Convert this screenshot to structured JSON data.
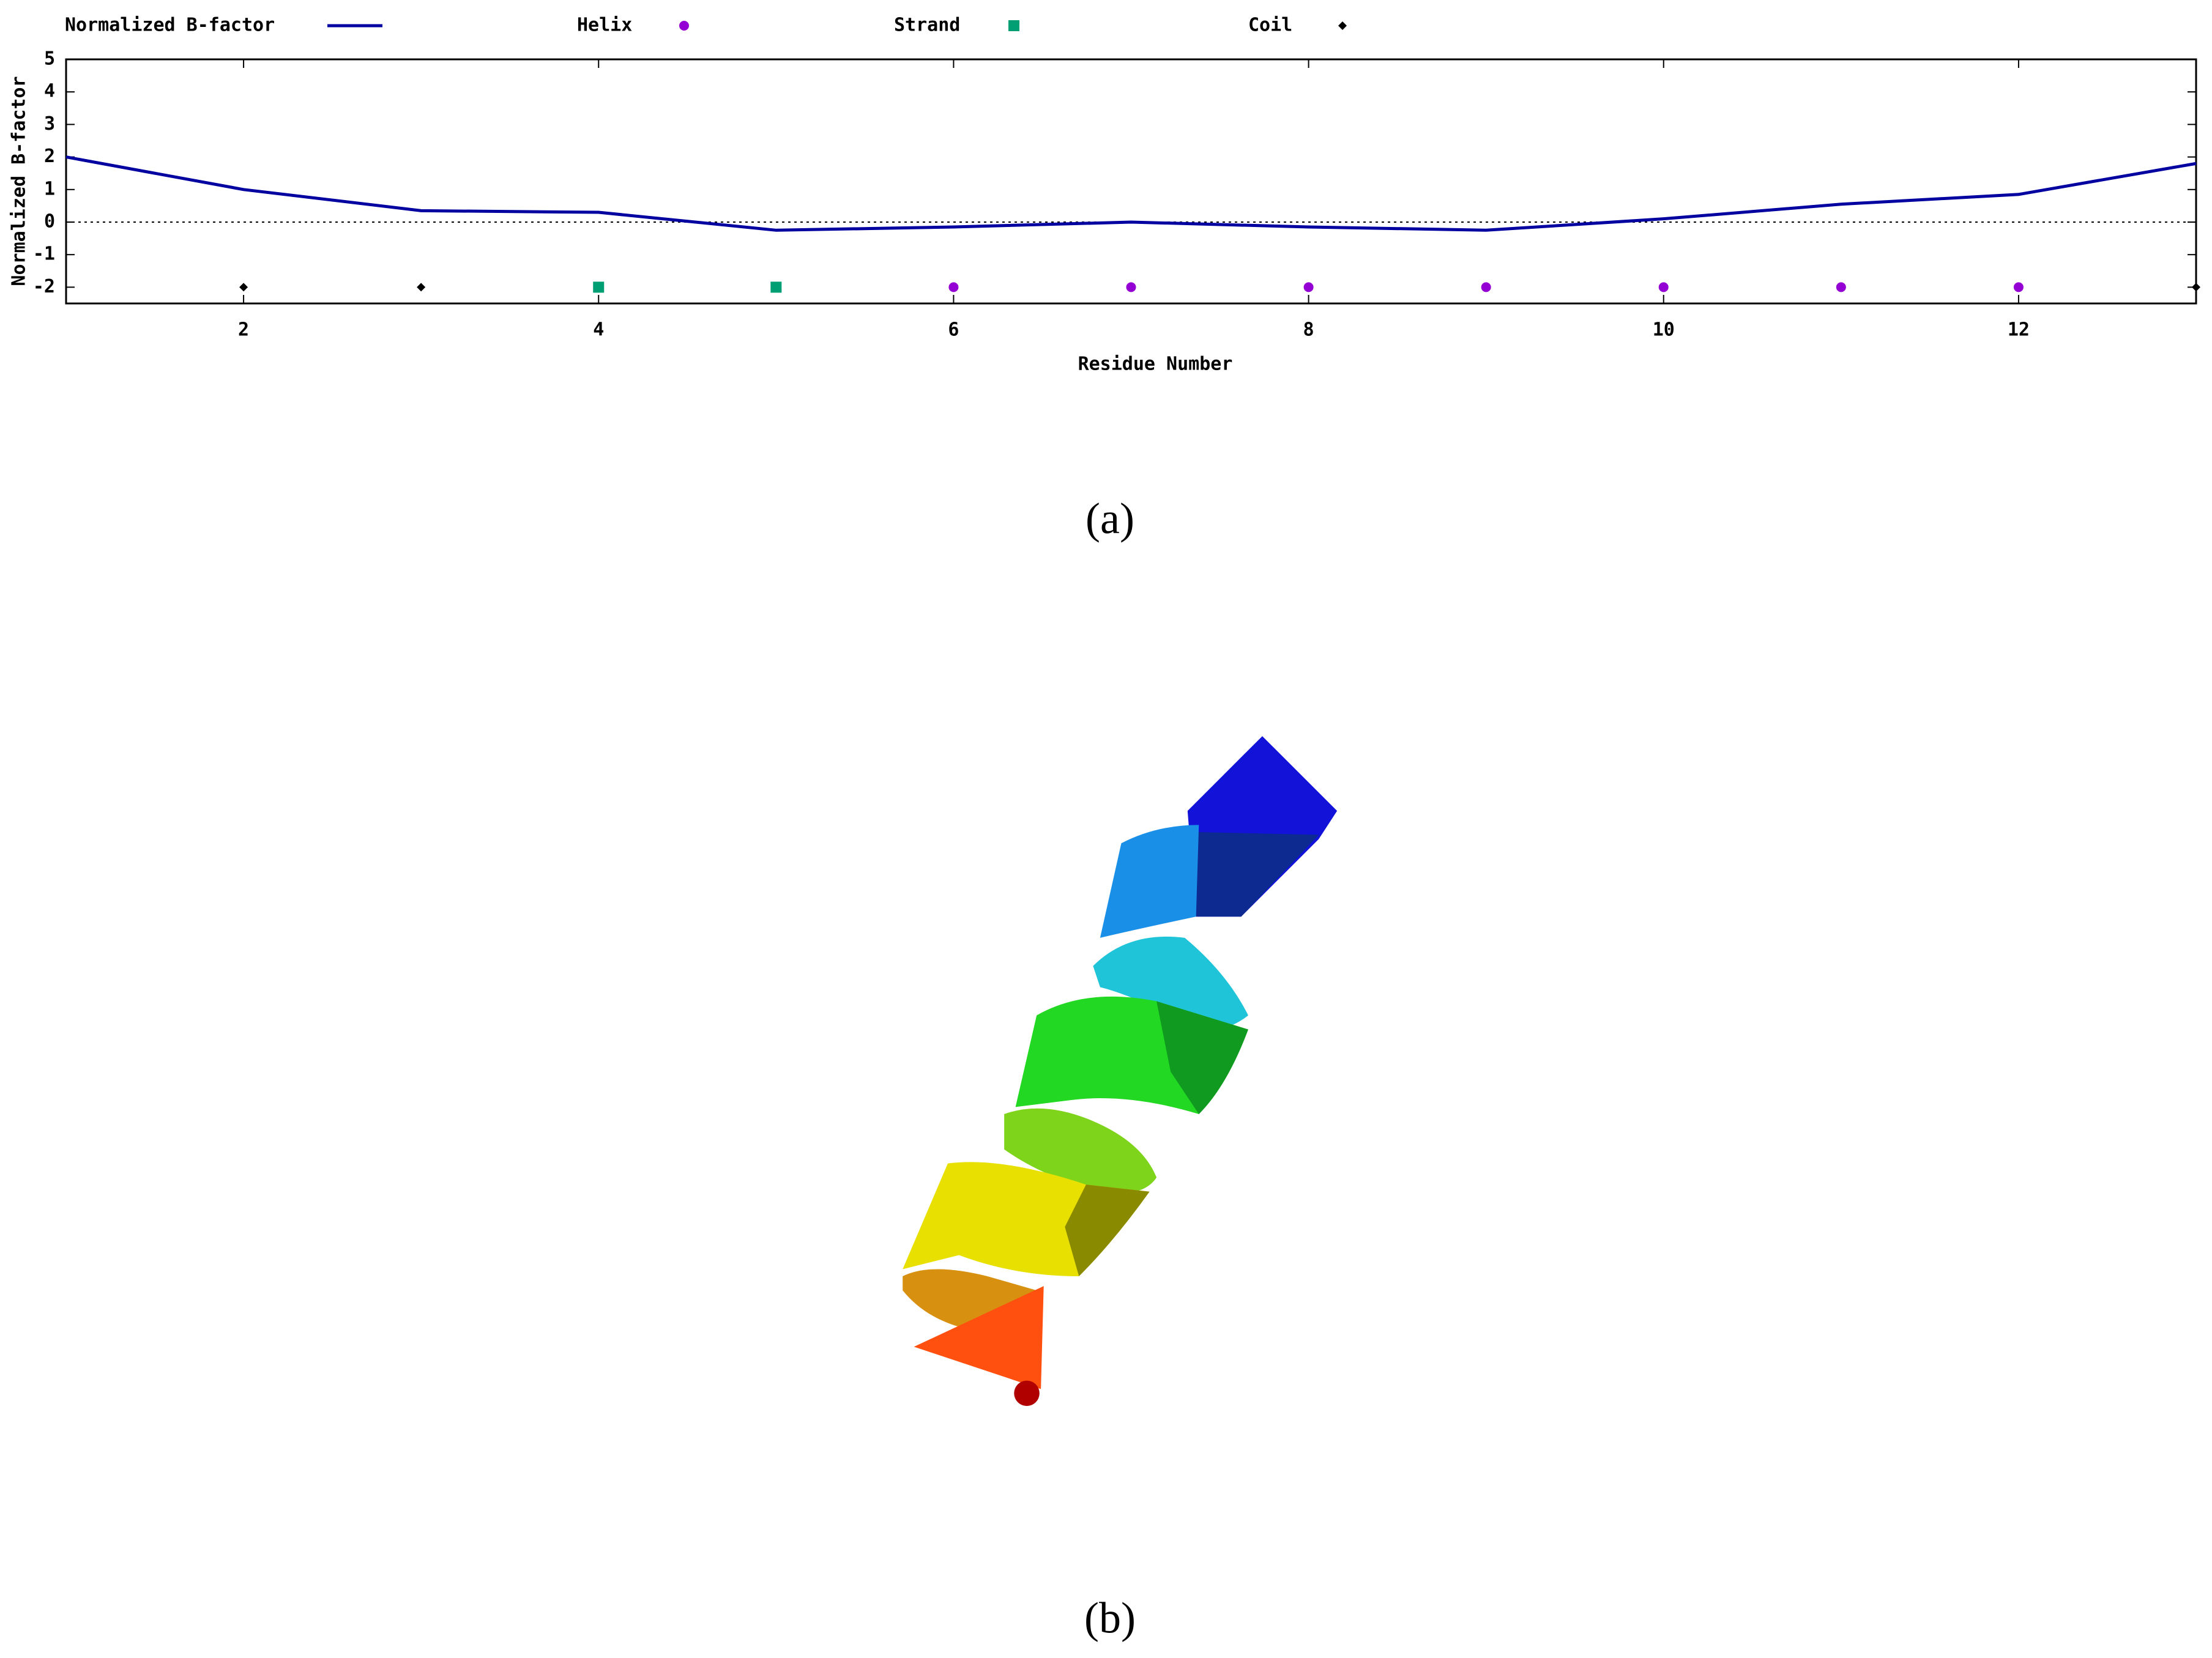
{
  "chart_data": {
    "type": "line",
    "y_label": "Normalized B-factor",
    "x_label": "Residue Number",
    "x": [
      1,
      2,
      3,
      4,
      5,
      6,
      7,
      8,
      9,
      10,
      11,
      12,
      13
    ],
    "series": [
      {
        "name": "Normalized B-factor",
        "color": "#0000a0",
        "type": "line",
        "values": [
          2.0,
          1.0,
          0.35,
          0.3,
          -0.25,
          -0.15,
          0.0,
          -0.15,
          -0.25,
          0.1,
          0.55,
          0.85,
          1.8
        ]
      },
      {
        "name": "Helix",
        "color": "#9400d3",
        "type": "scatter",
        "marker": "circle",
        "x": [
          6,
          7,
          8,
          9,
          10,
          11,
          12
        ],
        "values": [
          -2,
          -2,
          -2,
          -2,
          -2,
          -2,
          -2
        ]
      },
      {
        "name": "Strand",
        "color": "#009e73",
        "type": "scatter",
        "marker": "square",
        "x": [
          4,
          5
        ],
        "values": [
          -2,
          -2
        ]
      },
      {
        "name": "Coil",
        "color": "#000000",
        "type": "scatter",
        "marker": "diamond",
        "x": [
          2,
          3,
          13
        ],
        "values": [
          -2,
          -2,
          -2
        ]
      }
    ],
    "xlim": [
      1,
      13
    ],
    "xticks": [
      2,
      4,
      6,
      8,
      10,
      12
    ],
    "ylim": [
      -2.5,
      5
    ],
    "yticks": [
      -2,
      -1,
      0,
      1,
      2,
      3,
      4,
      5
    ],
    "zero_line": true
  },
  "captions": [
    "(a)",
    "(b)"
  ]
}
